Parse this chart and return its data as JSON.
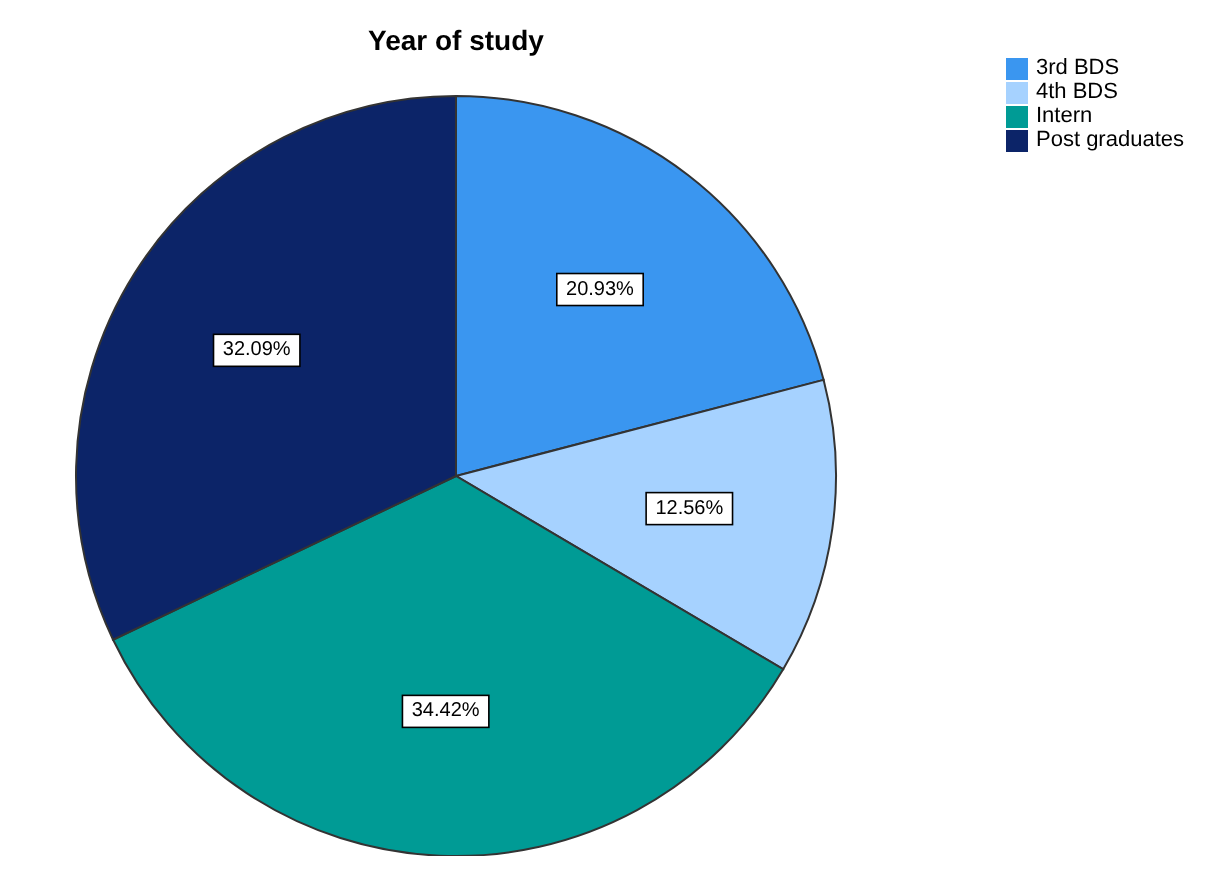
{
  "chart_data": {
    "type": "pie",
    "title": "Year of study",
    "categories": [
      "3rd BDS",
      "4th BDS",
      "Intern",
      "Post graduates"
    ],
    "values": [
      20.93,
      12.56,
      34.42,
      32.09
    ],
    "value_labels": [
      "20.93%",
      "12.56%",
      "34.42%",
      "32.09%"
    ],
    "colors": [
      "#3a96f0",
      "#a6d2ff",
      "#009b95",
      "#0c2468"
    ],
    "legend": "top right"
  }
}
